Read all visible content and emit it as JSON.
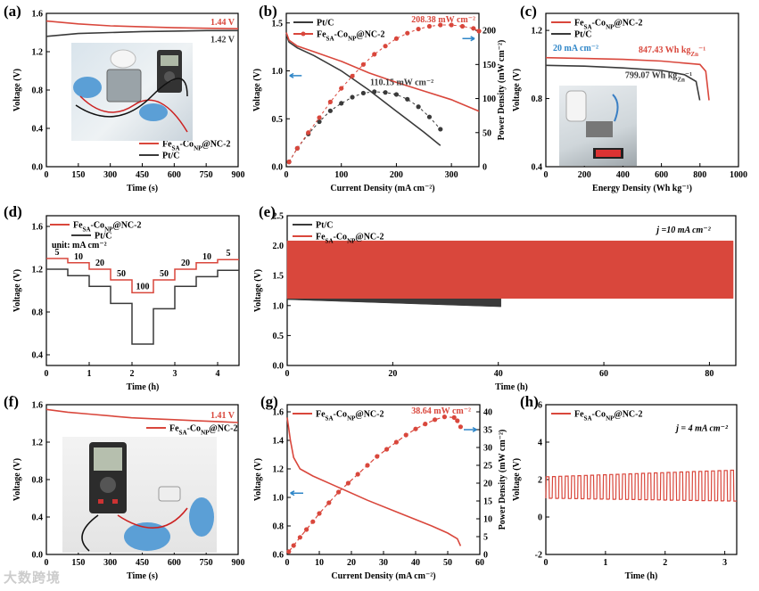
{
  "watermark": "大数跨境",
  "colors": {
    "red": "#d9473c",
    "dark": "#3a3a3a",
    "blue": "#2f86c8",
    "axis": "#000"
  },
  "chart_data": [
    {
      "id": "a",
      "label": "(a)",
      "type": "line",
      "xlabel": "Time (s)",
      "ylabel": "Voltage (V)",
      "xlim": [
        0,
        900
      ],
      "ylim": [
        0,
        1.6
      ],
      "xticks": [
        0,
        150,
        300,
        450,
        600,
        750,
        900
      ],
      "xtick_labels": [
        "0",
        "150",
        "300",
        "450",
        "600",
        "750",
        "900"
      ],
      "yticks": [
        0,
        0.4,
        0.8,
        1.2,
        1.6
      ],
      "ytick_labels": [
        "0.0",
        "0.4",
        "0.8",
        "1.2",
        "1.6"
      ],
      "series": [
        {
          "name": "Fe_SA-Co_NP@NC-2",
          "color": "red",
          "x": [
            0,
            150,
            300,
            450,
            600,
            750,
            900
          ],
          "y": [
            1.52,
            1.49,
            1.47,
            1.46,
            1.45,
            1.445,
            1.44
          ]
        },
        {
          "name": "Pt/C",
          "color": "dark",
          "x": [
            0,
            150,
            300,
            450,
            600,
            750,
            900
          ],
          "y": [
            1.36,
            1.39,
            1.4,
            1.41,
            1.415,
            1.42,
            1.42
          ]
        }
      ],
      "annotations": [
        {
          "text": "1.44 V",
          "color": "red"
        },
        {
          "text": "1.42 V",
          "color": "dark"
        }
      ],
      "legend": [
        "Fe_SA-Co_NP@NC-2",
        "Pt/C"
      ]
    },
    {
      "id": "b",
      "label": "(b)",
      "type": "line",
      "xlabel": "Current Density (mA cm⁻²)",
      "ylabel": "Voltage (V)",
      "y2label": "Power Density (mW cm⁻²)",
      "xlim": [
        0,
        350
      ],
      "ylim": [
        0,
        1.6
      ],
      "y2lim": [
        0,
        225
      ],
      "xticks": [
        0,
        100,
        200,
        300
      ],
      "xtick_labels": [
        "0",
        "100",
        "200",
        "300"
      ],
      "yticks": [
        0,
        0.5,
        1.0,
        1.5
      ],
      "ytick_labels": [
        "0.0",
        "0.5",
        "1.0",
        "1.5"
      ],
      "y2ticks": [
        0,
        50,
        100,
        150,
        200
      ],
      "y2tick_labels": [
        "0",
        "50",
        "100",
        "150",
        "200"
      ],
      "series": [
        {
          "name": "Pt/C voltage",
          "color": "dark",
          "x": [
            0,
            5,
            20,
            50,
            100,
            150,
            200,
            250,
            280
          ],
          "y": [
            1.38,
            1.3,
            1.24,
            1.16,
            1.0,
            0.8,
            0.58,
            0.36,
            0.22
          ]
        },
        {
          "name": "Fe_SA-Co_NP@NC-2 voltage",
          "color": "red",
          "x": [
            0,
            5,
            20,
            50,
            100,
            150,
            200,
            250,
            300,
            350
          ],
          "y": [
            1.4,
            1.32,
            1.26,
            1.2,
            1.1,
            0.98,
            0.88,
            0.79,
            0.7,
            0.58
          ]
        },
        {
          "name": "Pt/C power",
          "color": "dark",
          "axis": "y2",
          "x": [
            5,
            20,
            40,
            60,
            80,
            100,
            120,
            140,
            160,
            180,
            200,
            220,
            240,
            260,
            280
          ],
          "y": [
            7,
            27,
            48,
            66,
            82,
            93,
            102,
            108,
            110,
            109,
            106,
            99,
            88,
            73,
            55
          ]
        },
        {
          "name": "Fe_SA-Co_NP@NC-2 power",
          "color": "red",
          "axis": "y2",
          "x": [
            5,
            20,
            40,
            60,
            80,
            100,
            120,
            140,
            160,
            180,
            200,
            220,
            240,
            260,
            280,
            300,
            320,
            340,
            350
          ],
          "y": [
            7,
            27,
            50,
            72,
            95,
            115,
            133,
            150,
            165,
            177,
            188,
            196,
            202,
            206,
            208,
            208,
            206,
            203,
            199
          ]
        }
      ],
      "annotations": [
        {
          "text": "208.38 mW cm⁻²",
          "color": "red"
        },
        {
          "text": "110.15 mW cm⁻²",
          "color": "dark"
        }
      ],
      "legend": [
        "Pt/C",
        "Fe_SA-Co_NP@NC-2"
      ]
    },
    {
      "id": "c",
      "label": "(c)",
      "type": "line",
      "xlabel": "Energy Density (Wh kg_Zn⁻¹)",
      "ylabel": "Voltage (V)",
      "xlim": [
        0,
        1000
      ],
      "ylim": [
        0.4,
        1.3
      ],
      "xticks": [
        0,
        200,
        400,
        600,
        800,
        1000
      ],
      "xtick_labels": [
        "0",
        "200",
        "400",
        "600",
        "800",
        "1000"
      ],
      "yticks": [
        0.4,
        0.8,
        1.2
      ],
      "ytick_labels": [
        "0.4",
        "0.8",
        "1.2"
      ],
      "series": [
        {
          "name": "Fe_SA-Co_NP@NC-2",
          "color": "red",
          "x": [
            0,
            200,
            400,
            600,
            800,
            830,
            847
          ],
          "y": [
            1.04,
            1.035,
            1.03,
            1.02,
            1.0,
            0.96,
            0.79
          ]
        },
        {
          "name": "Pt/C",
          "color": "dark",
          "x": [
            0,
            200,
            400,
            600,
            720,
            780,
            799
          ],
          "y": [
            0.995,
            0.99,
            0.98,
            0.965,
            0.94,
            0.9,
            0.79
          ]
        }
      ],
      "annotations": [
        {
          "text": "20 mA cm⁻²",
          "color": "blue"
        },
        {
          "text": "847.43 Wh kg_Zn⁻¹",
          "color": "red"
        },
        {
          "text": "799.07 Wh kg_Zn⁻¹",
          "color": "dark"
        }
      ],
      "legend": [
        "Fe_SA-Co_NP@NC-2",
        "Pt/C"
      ]
    },
    {
      "id": "d",
      "label": "(d)",
      "type": "line",
      "xlabel": "Time (h)",
      "ylabel": "Voltage (V)",
      "xlim": [
        0,
        4.5
      ],
      "ylim": [
        0.3,
        1.7
      ],
      "xticks": [
        0,
        1,
        2,
        3,
        4
      ],
      "xtick_labels": [
        "0",
        "1",
        "2",
        "3",
        "4"
      ],
      "yticks": [
        0.4,
        0.8,
        1.2,
        1.6
      ],
      "ytick_labels": [
        "0.4",
        "0.8",
        "1.2",
        "1.6"
      ],
      "series": [
        {
          "name": "Fe_SA-Co_NP@NC-2",
          "color": "red",
          "x": [
            0,
            0.5,
            0.5,
            1.0,
            1.0,
            1.5,
            1.5,
            2.0,
            2.0,
            2.5,
            2.5,
            3.0,
            3.0,
            3.5,
            3.5,
            4.0,
            4.0,
            4.5
          ],
          "y": [
            1.3,
            1.3,
            1.26,
            1.26,
            1.2,
            1.2,
            1.1,
            1.1,
            0.98,
            0.98,
            1.1,
            1.1,
            1.2,
            1.2,
            1.26,
            1.26,
            1.29,
            1.29
          ]
        },
        {
          "name": "Pt/C",
          "color": "dark",
          "x": [
            0,
            0.5,
            0.5,
            1.0,
            1.0,
            1.5,
            1.5,
            2.0,
            2.0,
            2.5,
            2.5,
            3.0,
            3.0,
            3.5,
            3.5,
            4.0,
            4.0,
            4.5
          ],
          "y": [
            1.2,
            1.2,
            1.14,
            1.14,
            1.04,
            1.04,
            0.88,
            0.88,
            0.5,
            0.5,
            0.83,
            0.83,
            1.04,
            1.04,
            1.13,
            1.13,
            1.19,
            1.19
          ]
        }
      ],
      "step_labels": [
        "5",
        "10",
        "20",
        "50",
        "100",
        "50",
        "20",
        "10",
        "5"
      ],
      "annotations": [
        {
          "text": "unit: mA cm⁻²",
          "color": "dark"
        }
      ],
      "legend": [
        "Fe_SA-Co_NP@NC-2",
        "Pt/C"
      ]
    },
    {
      "id": "e",
      "label": "(e)",
      "type": "area",
      "xlabel": "Time (h)",
      "ylabel": "Voltage (V)",
      "xlim": [
        0,
        85
      ],
      "ylim": [
        0,
        2.5
      ],
      "xticks": [
        0,
        20,
        40,
        60,
        80
      ],
      "xtick_labels": [
        "0",
        "20",
        "40",
        "60",
        "80"
      ],
      "yticks": [
        0,
        0.5,
        1.0,
        1.5,
        2.0,
        2.5
      ],
      "ytick_labels": [
        "0.0",
        "0.5",
        "1.0",
        "1.5",
        "2.0",
        "2.5"
      ],
      "series": [
        {
          "name": "Pt/C",
          "color": "dark",
          "x_end": 40.5,
          "low": [
            1.1,
            0.98
          ],
          "high": [
            2.08,
            2.02
          ]
        },
        {
          "name": "Fe_SA-Co_NP@NC-2",
          "color": "red",
          "x_end": 84.5,
          "low": [
            1.12,
            1.12
          ],
          "high": [
            2.08,
            2.08
          ]
        }
      ],
      "annotations": [
        {
          "text": "j =10 mA cm⁻²",
          "color": "dark"
        }
      ],
      "legend": [
        "Pt/C",
        "Fe_SA-Co_NP@NC-2"
      ]
    },
    {
      "id": "f",
      "label": "(f)",
      "type": "line",
      "xlabel": "Time (s)",
      "ylabel": "Voltage (V)",
      "xlim": [
        0,
        900
      ],
      "ylim": [
        0,
        1.6
      ],
      "xticks": [
        0,
        150,
        300,
        450,
        600,
        750,
        900
      ],
      "xtick_labels": [
        "0",
        "150",
        "300",
        "450",
        "600",
        "750",
        "900"
      ],
      "yticks": [
        0,
        0.4,
        0.8,
        1.2,
        1.6
      ],
      "ytick_labels": [
        "0.0",
        "0.4",
        "0.8",
        "1.2",
        "1.6"
      ],
      "series": [
        {
          "name": "Fe_SA-Co_NP@NC-2",
          "color": "red",
          "x": [
            0,
            100,
            200,
            300,
            400,
            500,
            600,
            700,
            800,
            900
          ],
          "y": [
            1.55,
            1.52,
            1.5,
            1.48,
            1.46,
            1.45,
            1.44,
            1.43,
            1.42,
            1.41
          ]
        }
      ],
      "annotations": [
        {
          "text": "1.41 V",
          "color": "red"
        }
      ],
      "legend": [
        "Fe_SA-Co_NP@NC-2"
      ]
    },
    {
      "id": "g",
      "label": "(g)",
      "type": "line",
      "xlabel": "Current Density (mA cm⁻²)",
      "ylabel": "Voltage (V)",
      "y2label": "Power Density (mW cm⁻²)",
      "xlim": [
        0,
        60
      ],
      "ylim": [
        0.6,
        1.65
      ],
      "y2lim": [
        0,
        42
      ],
      "xticks": [
        0,
        10,
        20,
        30,
        40,
        50,
        60
      ],
      "xtick_labels": [
        "0",
        "10",
        "20",
        "30",
        "40",
        "50",
        "60"
      ],
      "yticks": [
        0.6,
        0.8,
        1.0,
        1.2,
        1.4,
        1.6
      ],
      "ytick_labels": [
        "0.6",
        "0.8",
        "1.0",
        "1.2",
        "1.4",
        "1.6"
      ],
      "y2ticks": [
        0,
        5,
        10,
        15,
        20,
        25,
        30,
        35,
        40
      ],
      "y2tick_labels": [
        "0",
        "5",
        "10",
        "15",
        "20",
        "25",
        "30",
        "35",
        "40"
      ],
      "series": [
        {
          "name": "voltage",
          "color": "red",
          "x": [
            0,
            1,
            2,
            4,
            8,
            15,
            25,
            35,
            45,
            50,
            53,
            54
          ],
          "y": [
            1.56,
            1.4,
            1.28,
            1.2,
            1.15,
            1.08,
            0.98,
            0.89,
            0.8,
            0.75,
            0.71,
            0.66
          ]
        },
        {
          "name": "power",
          "color": "red",
          "axis": "y2",
          "x": [
            0.5,
            2,
            4,
            6,
            8,
            10,
            13,
            16,
            19,
            22,
            25,
            28,
            31,
            34,
            37,
            40,
            43,
            46,
            49,
            52,
            53,
            54
          ],
          "y": [
            0.8,
            2.5,
            4.8,
            7,
            9.2,
            11.5,
            14.5,
            17.5,
            20,
            22.5,
            25,
            27.5,
            29.5,
            31.5,
            33.5,
            35.2,
            36.6,
            37.8,
            38.6,
            38.4,
            37.5,
            35.8
          ]
        }
      ],
      "annotations": [
        {
          "text": "38.64 mW cm⁻²",
          "color": "red"
        }
      ],
      "legend": [
        "Fe_SA-Co_NP@NC-2"
      ]
    },
    {
      "id": "h",
      "label": "(h)",
      "type": "line",
      "xlabel": "Time (h)",
      "ylabel": "Voltage (V)",
      "xlim": [
        0,
        3.2
      ],
      "ylim": [
        -2,
        6
      ],
      "xticks": [
        0,
        1,
        2,
        3
      ],
      "xtick_labels": [
        "0",
        "1",
        "2",
        "3"
      ],
      "yticks": [
        -2,
        0,
        2,
        4,
        6
      ],
      "ytick_labels": [
        "-2",
        "0",
        "2",
        "4",
        "6"
      ],
      "cycles": 30,
      "charge_v": [
        2.15,
        2.5
      ],
      "discharge_v": [
        1.0,
        0.85
      ],
      "annotations": [
        {
          "text": "j = 4 mA cm⁻²",
          "color": "dark"
        }
      ],
      "legend": [
        "Fe_SA-Co_NP@NC-2"
      ]
    }
  ]
}
